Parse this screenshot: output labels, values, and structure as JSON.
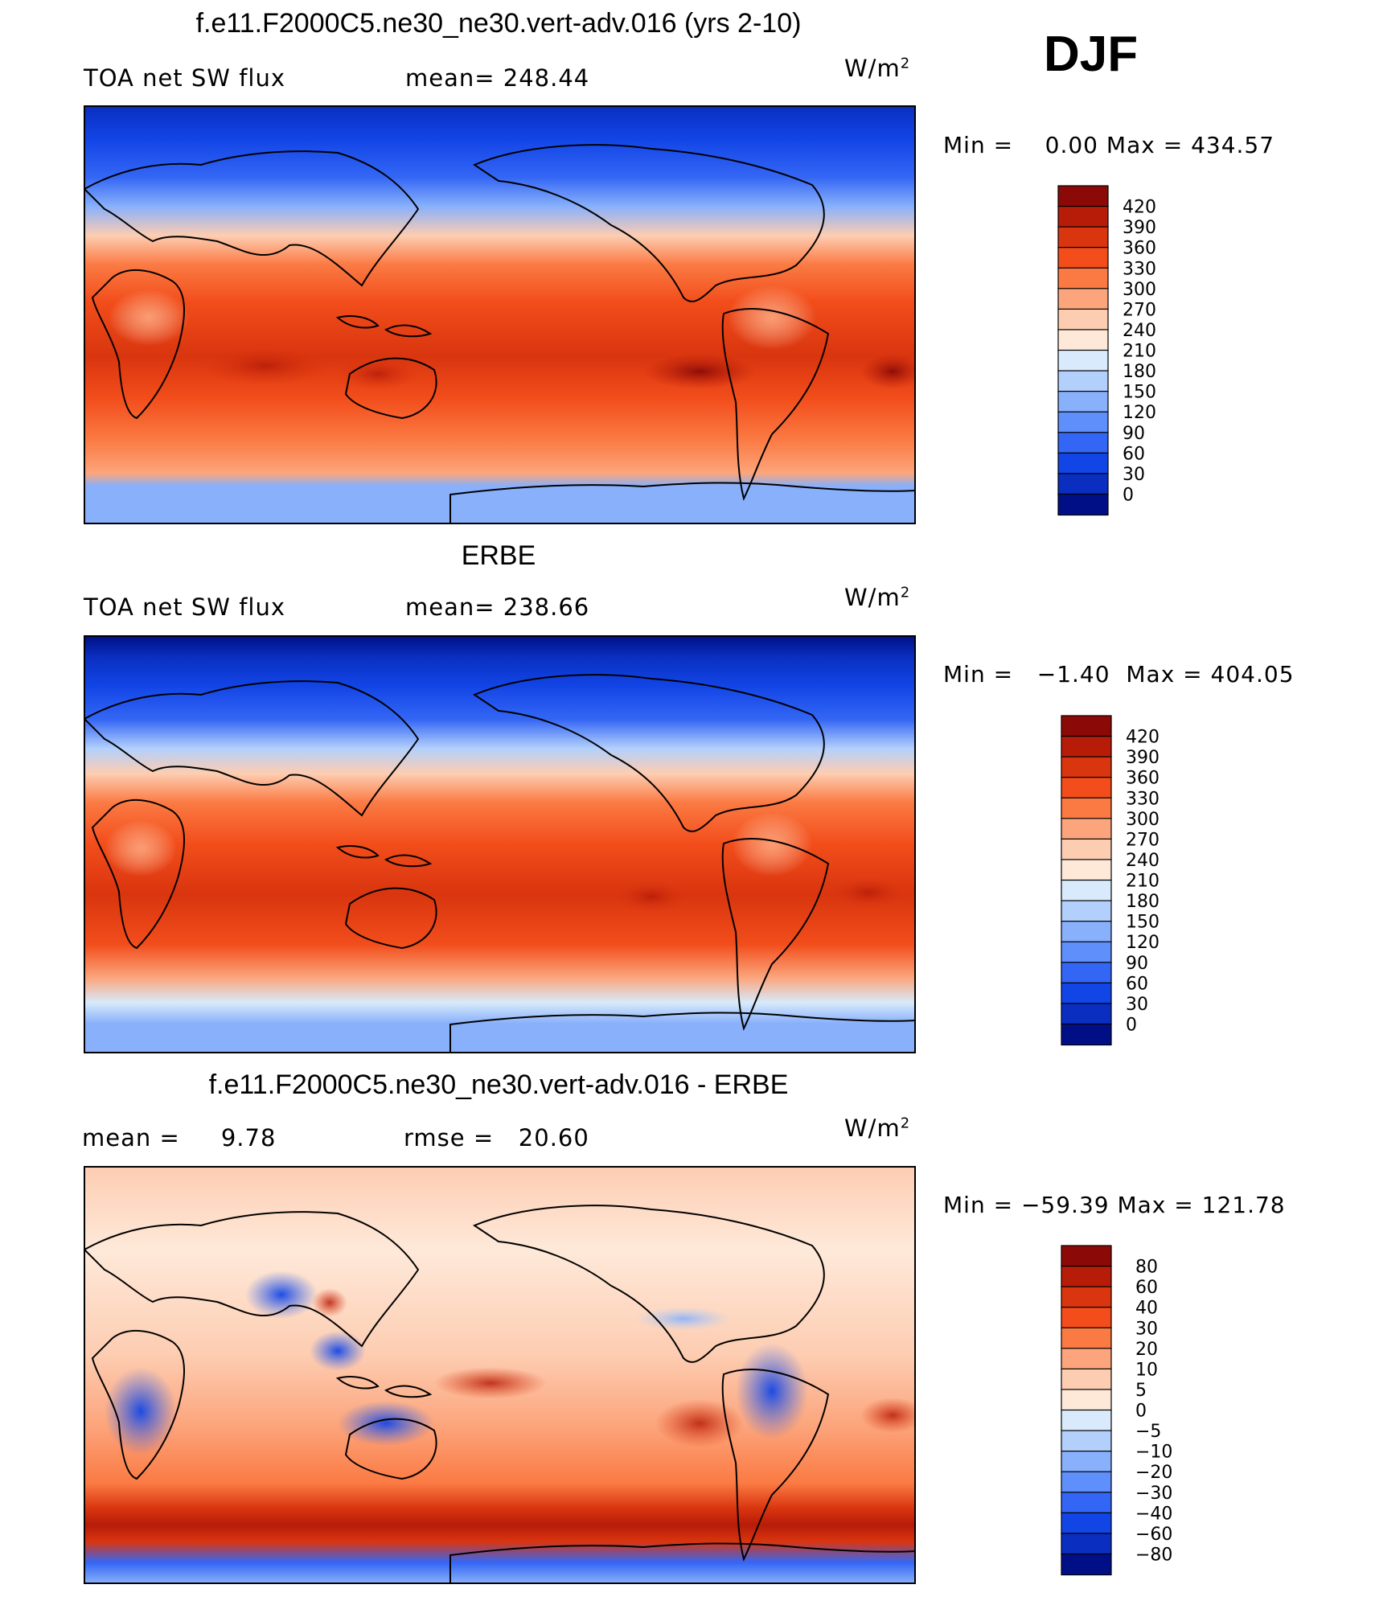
{
  "figure": {
    "season": "DJF"
  },
  "chart_data": [
    {
      "type": "heatmap",
      "title": "f.e11.F2000C5.ne30_ne30.vert-adv.016 (yrs 2-10)",
      "variable": "TOA net SW flux",
      "mean_label": "mean=",
      "mean_value": "248.44",
      "units": "W/m",
      "units_sup": "2",
      "min_label": "Min =",
      "min_value": "0.00",
      "max_label": "Max =",
      "max_value": "434.57",
      "colorbar": {
        "labels": [
          "420",
          "390",
          "360",
          "330",
          "300",
          "270",
          "240",
          "210",
          "180",
          "150",
          "120",
          "90",
          "60",
          "30",
          "0"
        ],
        "colors": [
          "#8b0a07",
          "#b71c09",
          "#d9350f",
          "#f24d1b",
          "#fb7a43",
          "#fca57c",
          "#fdcdb2",
          "#fee9d9",
          "#d8eafb",
          "#b3d0fc",
          "#88b0fb",
          "#5e8ffb",
          "#3466f5",
          "#1245e6",
          "#0a2fc0",
          "#000f86"
        ]
      }
    },
    {
      "type": "heatmap",
      "title": "ERBE",
      "variable": "TOA net SW flux",
      "mean_label": "mean=",
      "mean_value": "238.66",
      "units": "W/m",
      "units_sup": "2",
      "min_label": "Min =",
      "min_value": "−1.40",
      "max_label": "Max =",
      "max_value": "404.05",
      "colorbar": {
        "labels": [
          "420",
          "390",
          "360",
          "330",
          "300",
          "270",
          "240",
          "210",
          "180",
          "150",
          "120",
          "90",
          "60",
          "30",
          "0"
        ],
        "colors": [
          "#8b0a07",
          "#b71c09",
          "#d9350f",
          "#f24d1b",
          "#fb7a43",
          "#fca57c",
          "#fdcdb2",
          "#fee9d9",
          "#d8eafb",
          "#b3d0fc",
          "#88b0fb",
          "#5e8ffb",
          "#3466f5",
          "#1245e6",
          "#0a2fc0",
          "#000f86"
        ]
      }
    },
    {
      "type": "heatmap",
      "title": "f.e11.F2000C5.ne30_ne30.vert-adv.016 - ERBE",
      "mean_label": "mean =",
      "mean_value": "9.78",
      "rmse_label": "rmse =",
      "rmse_value": "20.60",
      "units": "W/m",
      "units_sup": "2",
      "min_label": "Min =",
      "min_value": "−59.39",
      "max_label": "Max =",
      "max_value": "121.78",
      "colorbar": {
        "labels": [
          "80",
          "60",
          "40",
          "30",
          "20",
          "10",
          "5",
          "0",
          "−5",
          "−10",
          "−20",
          "−30",
          "−40",
          "−60",
          "−80"
        ],
        "colors": [
          "#8b0a07",
          "#b71c09",
          "#d9350f",
          "#f24d1b",
          "#fb7a43",
          "#fca57c",
          "#fdcdb2",
          "#fee9d9",
          "#d8eafb",
          "#b3d0fc",
          "#88b0fb",
          "#5e8ffb",
          "#3466f5",
          "#1245e6",
          "#0a2fc0",
          "#000f86"
        ]
      }
    }
  ]
}
